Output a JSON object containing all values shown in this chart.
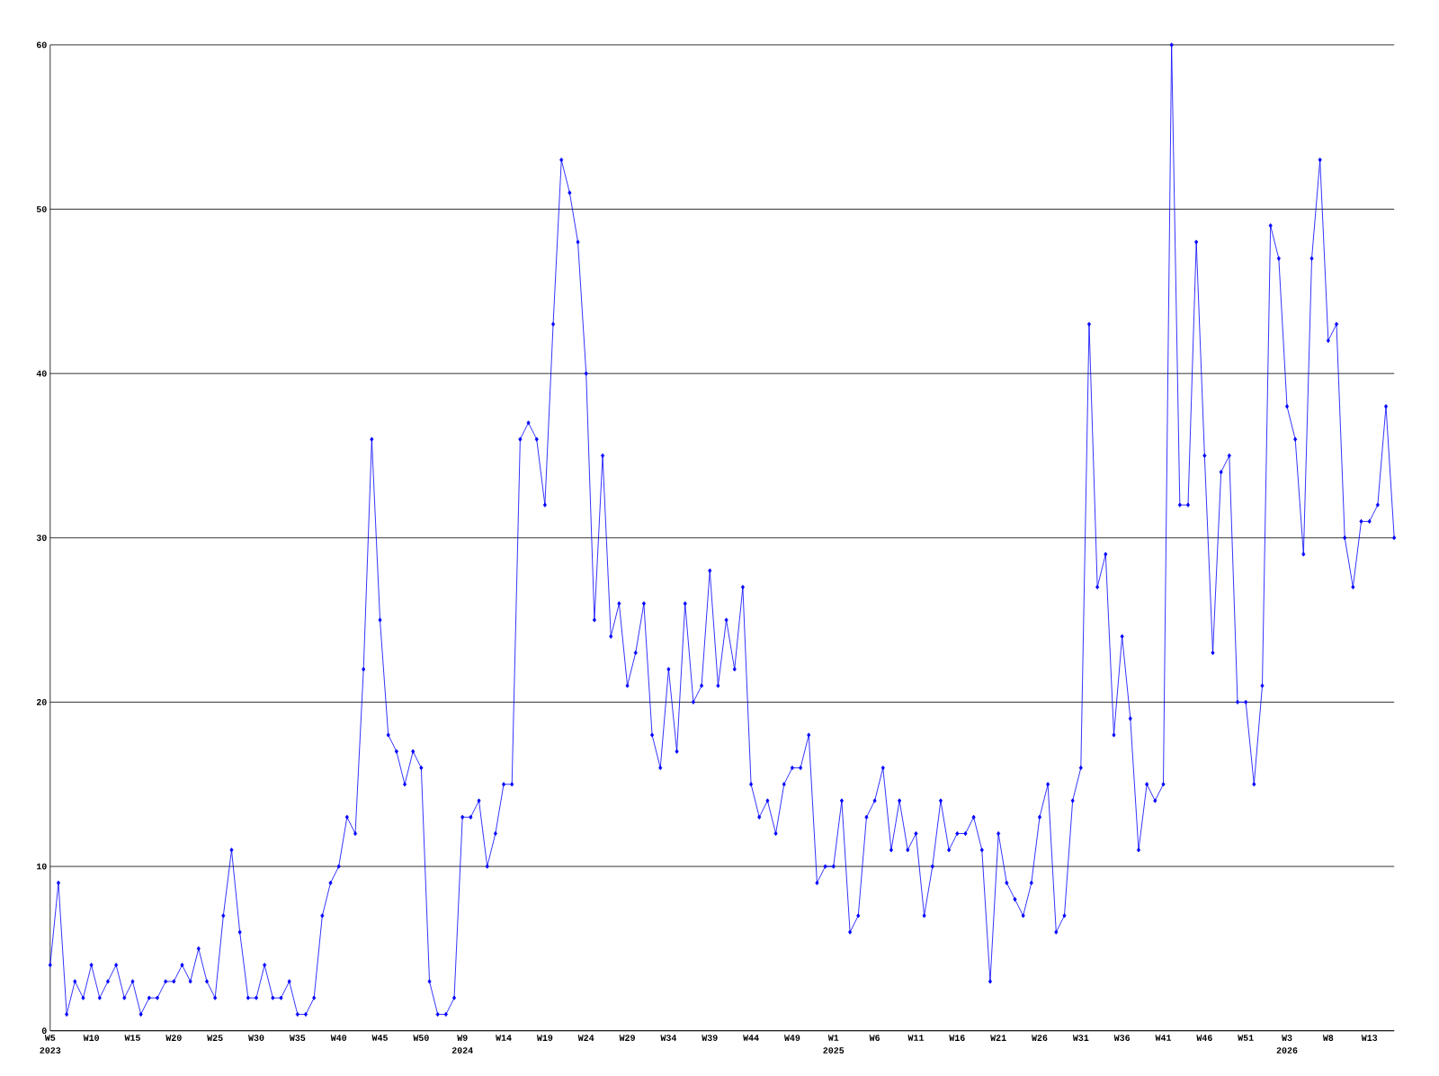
{
  "chart_data": {
    "type": "line",
    "categories": [
      "W5",
      null,
      null,
      null,
      null,
      "W10",
      null,
      null,
      null,
      null,
      "W15",
      null,
      null,
      null,
      null,
      "W20",
      null,
      null,
      null,
      null,
      "W25",
      null,
      null,
      null,
      null,
      "W30",
      null,
      null,
      null,
      null,
      "W35",
      null,
      null,
      null,
      null,
      "W40",
      null,
      null,
      null,
      null,
      "W45",
      null,
      null,
      null,
      null,
      "W50",
      null,
      null,
      null,
      null,
      "W9",
      null,
      null,
      null,
      null,
      "W14",
      null,
      null,
      null,
      null,
      "W19",
      null,
      null,
      null,
      null,
      "W24",
      null,
      null,
      null,
      null,
      "W29",
      null,
      null,
      null,
      null,
      "W34",
      null,
      null,
      null,
      null,
      "W39",
      null,
      null,
      null,
      null,
      "W44",
      null,
      null,
      null,
      null,
      "W49",
      null,
      null,
      null,
      null,
      "W1",
      null,
      null,
      null,
      null,
      "W6",
      null,
      null,
      null,
      null,
      "W11",
      null,
      null,
      null,
      null,
      "W16",
      null,
      null,
      null,
      null,
      "W21",
      null,
      null,
      null,
      null,
      "W26",
      null,
      null,
      null,
      null,
      "W31",
      null,
      null,
      null,
      null,
      "W36",
      null,
      null,
      null,
      null,
      "W41",
      null,
      null,
      null,
      null,
      "W46",
      null,
      null,
      null,
      null,
      "W51",
      null,
      null,
      null,
      null,
      "W3",
      null,
      null,
      null,
      null,
      "W8",
      null,
      null,
      null,
      null,
      "W13",
      null,
      null,
      null
    ],
    "values": [
      4,
      9,
      1,
      3,
      2,
      4,
      2,
      3,
      4,
      2,
      3,
      1,
      2,
      2,
      3,
      3,
      4,
      3,
      5,
      3,
      2,
      7,
      11,
      6,
      2,
      2,
      4,
      2,
      2,
      3,
      1,
      1,
      2,
      7,
      9,
      10,
      13,
      12,
      22,
      36,
      25,
      18,
      17,
      15,
      17,
      16,
      3,
      1,
      1,
      2,
      13,
      13,
      14,
      10,
      12,
      15,
      15,
      36,
      37,
      36,
      32,
      43,
      53,
      51,
      48,
      40,
      25,
      35,
      24,
      26,
      21,
      23,
      26,
      18,
      16,
      22,
      17,
      26,
      20,
      21,
      28,
      21,
      25,
      22,
      27,
      15,
      13,
      14,
      12,
      15,
      16,
      16,
      18,
      9,
      10,
      10,
      14,
      6,
      7,
      13,
      14,
      16,
      11,
      14,
      11,
      12,
      7,
      10,
      14,
      11,
      12,
      12,
      13,
      11,
      3,
      12,
      9,
      8,
      7,
      9,
      13,
      15,
      6,
      7,
      14,
      16,
      43,
      27,
      29,
      18,
      24,
      19,
      11,
      15,
      14,
      15,
      60,
      32,
      32,
      48,
      35,
      23,
      34,
      35,
      20,
      20,
      15,
      21,
      49,
      47,
      38,
      36,
      29,
      47,
      53,
      42,
      43,
      30,
      27,
      31,
      31,
      32,
      38,
      30
    ],
    "color": "#0000ff",
    "ylim": [
      0,
      60
    ],
    "yticks": [
      0,
      10,
      20,
      30,
      40,
      50,
      60
    ],
    "grid": "y",
    "marker": "diamond",
    "annotations": [
      "2023",
      "2024",
      "2025",
      "2026"
    ]
  }
}
